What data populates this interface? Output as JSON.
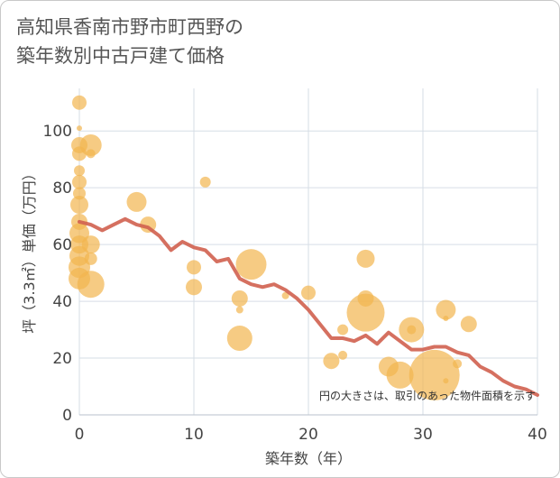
{
  "title_line1": "高知県香南市野市町西野の",
  "title_line2": "築年数別中古戸建て価格",
  "chart_data": {
    "type": "scatter",
    "xlabel": "築年数（年）",
    "ylabel": "坪（3.3㎡）単価（万円）",
    "xlim": [
      0,
      40
    ],
    "ylim": [
      0,
      115
    ],
    "xticks": [
      0,
      10,
      20,
      30,
      40
    ],
    "yticks": [
      0,
      20,
      40,
      60,
      80,
      100
    ],
    "grid": true,
    "annotation": "円の大きさは、取引のあった物件面積を示す",
    "colors": {
      "bubble": "#f2b54f",
      "line": "#d0604f",
      "grid": "#d6dde6",
      "axis_text": "#444444"
    },
    "bubbles": [
      {
        "x": 0,
        "y": 110,
        "s": 8
      },
      {
        "x": 0,
        "y": 101,
        "s": 3
      },
      {
        "x": 0,
        "y": 95,
        "s": 9
      },
      {
        "x": 0,
        "y": 92,
        "s": 8
      },
      {
        "x": 0,
        "y": 86,
        "s": 6
      },
      {
        "x": 0,
        "y": 82,
        "s": 8
      },
      {
        "x": 0,
        "y": 78,
        "s": 7
      },
      {
        "x": 0,
        "y": 74,
        "s": 10
      },
      {
        "x": 0,
        "y": 68,
        "s": 9
      },
      {
        "x": 0,
        "y": 64,
        "s": 11
      },
      {
        "x": 0,
        "y": 60,
        "s": 10
      },
      {
        "x": 0,
        "y": 56,
        "s": 11
      },
      {
        "x": 0,
        "y": 52,
        "s": 12
      },
      {
        "x": 0,
        "y": 48,
        "s": 12
      },
      {
        "x": 1,
        "y": 95,
        "s": 12
      },
      {
        "x": 1,
        "y": 92,
        "s": 5
      },
      {
        "x": 1,
        "y": 60,
        "s": 10
      },
      {
        "x": 1,
        "y": 55,
        "s": 7
      },
      {
        "x": 1,
        "y": 46,
        "s": 15
      },
      {
        "x": 5,
        "y": 75,
        "s": 11
      },
      {
        "x": 6,
        "y": 67,
        "s": 9
      },
      {
        "x": 10,
        "y": 52,
        "s": 8
      },
      {
        "x": 10,
        "y": 45,
        "s": 9
      },
      {
        "x": 11,
        "y": 82,
        "s": 6
      },
      {
        "x": 14,
        "y": 41,
        "s": 9
      },
      {
        "x": 14,
        "y": 37,
        "s": 4
      },
      {
        "x": 14,
        "y": 27,
        "s": 14
      },
      {
        "x": 15,
        "y": 53,
        "s": 17
      },
      {
        "x": 18,
        "y": 42,
        "s": 4
      },
      {
        "x": 20,
        "y": 43,
        "s": 8
      },
      {
        "x": 22,
        "y": 19,
        "s": 9
      },
      {
        "x": 23,
        "y": 30,
        "s": 6
      },
      {
        "x": 23,
        "y": 21,
        "s": 5
      },
      {
        "x": 25,
        "y": 55,
        "s": 10
      },
      {
        "x": 25,
        "y": 41,
        "s": 9
      },
      {
        "x": 25,
        "y": 36,
        "s": 21
      },
      {
        "x": 27,
        "y": 17,
        "s": 11
      },
      {
        "x": 28,
        "y": 14,
        "s": 15
      },
      {
        "x": 29,
        "y": 30,
        "s": 14
      },
      {
        "x": 29,
        "y": 30,
        "s": 5
      },
      {
        "x": 31,
        "y": 14,
        "s": 28
      },
      {
        "x": 32,
        "y": 37,
        "s": 11
      },
      {
        "x": 32,
        "y": 34,
        "s": 3
      },
      {
        "x": 32,
        "y": 12,
        "s": 3
      },
      {
        "x": 33,
        "y": 18,
        "s": 5
      },
      {
        "x": 34,
        "y": 32,
        "s": 9
      }
    ],
    "trend_line": {
      "x": [
        0,
        1,
        2,
        3,
        4,
        5,
        6,
        7,
        8,
        9,
        10,
        11,
        12,
        13,
        14,
        15,
        16,
        17,
        18,
        19,
        20,
        21,
        22,
        23,
        24,
        25,
        26,
        27,
        28,
        29,
        30,
        31,
        32,
        33,
        34,
        35,
        36,
        37,
        38,
        39,
        40
      ],
      "y": [
        68,
        67,
        65,
        67,
        69,
        67,
        66,
        63,
        58,
        61,
        59,
        58,
        54,
        55,
        48,
        46,
        45,
        46,
        44,
        41,
        37,
        32,
        27,
        27,
        26,
        28,
        25,
        29,
        26,
        23,
        23,
        24,
        24,
        22,
        21,
        17,
        15,
        12,
        10,
        9,
        7
      ]
    }
  }
}
